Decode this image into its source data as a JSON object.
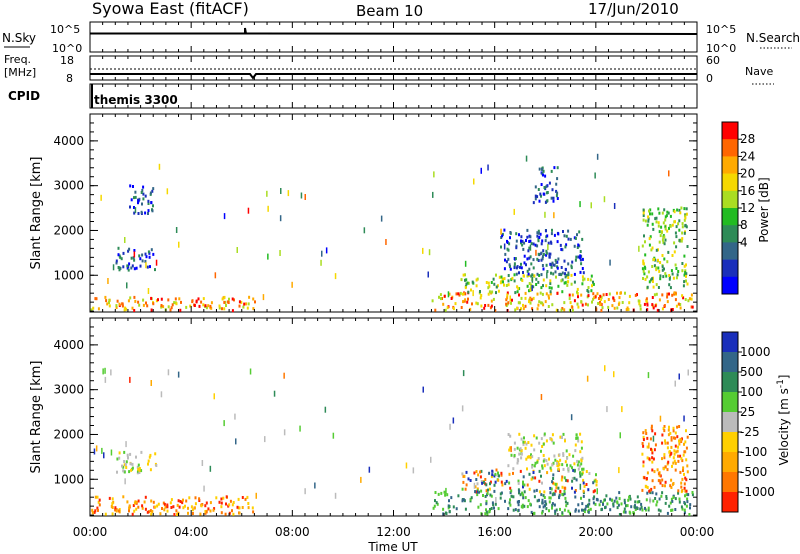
{
  "header": {
    "title_left": "Syowa East (fitACF)",
    "title_center": "Beam 10",
    "title_right": "17/Jun/2010"
  },
  "strip_nsky": {
    "left_label": "N.Sky",
    "left_ticks": [
      "10^5",
      "10^0"
    ],
    "right_ticks": [
      "10^5",
      "10^0"
    ],
    "right_label": "N.Search"
  },
  "strip_freq": {
    "left_label_line1": "Freq.",
    "left_label_line2": "[MHz]",
    "left_ticks": [
      "18",
      "8"
    ],
    "right_ticks": [
      "60",
      "0"
    ],
    "right_label": "Nave"
  },
  "strip_cpid": {
    "left_label": "CPID",
    "program": "themis 3300"
  },
  "colorbar_power": {
    "label": "Power [dB]",
    "ticks": [
      "28",
      "24",
      "20",
      "16",
      "12",
      "8",
      "4"
    ],
    "colors": [
      "#ff0000",
      "#ff6600",
      "#ffaa00",
      "#f5d800",
      "#aadd22",
      "#22bb22",
      "#2e8b57",
      "#336688",
      "#1a2fbb",
      "#0000ff"
    ]
  },
  "colorbar_velocity": {
    "label": "Velocity [m s^-1]",
    "ticks": [
      "1000",
      "500",
      "100",
      "25",
      "-25",
      "-100",
      "-500",
      "-1000"
    ],
    "colors": [
      "#1a2fbb",
      "#336688",
      "#2e8b57",
      "#55cc33",
      "#bbbbbb",
      "#ffd000",
      "#ffaa00",
      "#ff7700",
      "#ff2200"
    ]
  },
  "chart_data": [
    {
      "type": "heatmap",
      "title": "Power",
      "ylabel": "Slant Range [km]",
      "y_ticks": [
        "1000",
        "2000",
        "3000",
        "4000"
      ],
      "ylim": [
        180,
        4600
      ],
      "xlim": [
        0,
        24
      ],
      "x_ticks": [
        "00:00",
        "04:00",
        "08:00",
        "12:00",
        "16:00",
        "20:00",
        "00:00"
      ],
      "clusters": [
        {
          "t0": 0.0,
          "t1": 6.5,
          "r0": 200,
          "r1": 500,
          "level": "high"
        },
        {
          "t0": 1.0,
          "t1": 2.6,
          "r0": 1100,
          "r1": 1600,
          "level": "low"
        },
        {
          "t0": 1.5,
          "t1": 2.5,
          "r0": 2300,
          "r1": 3000,
          "level": "low"
        },
        {
          "t0": 13.5,
          "t1": 23.8,
          "r0": 200,
          "r1": 600,
          "level": "high"
        },
        {
          "t0": 14.6,
          "t1": 20.0,
          "r0": 600,
          "r1": 1000,
          "level": "mid"
        },
        {
          "t0": 16.2,
          "t1": 19.5,
          "r0": 1000,
          "r1": 2000,
          "level": "low"
        },
        {
          "t0": 21.8,
          "t1": 23.6,
          "r0": 700,
          "r1": 2500,
          "level": "mid"
        },
        {
          "t0": 17.5,
          "t1": 18.5,
          "r0": 2600,
          "r1": 3400,
          "level": "low"
        }
      ]
    },
    {
      "type": "heatmap",
      "title": "Velocity",
      "ylabel": "Slant Range [km]",
      "y_ticks": [
        "1000",
        "2000",
        "3000",
        "4000"
      ],
      "ylim": [
        180,
        4600
      ],
      "xlim": [
        0,
        24
      ],
      "x_ticks": [
        "00:00",
        "04:00",
        "08:00",
        "12:00",
        "16:00",
        "20:00",
        "00:00"
      ],
      "xlabel": "Time UT",
      "clusters": [
        {
          "t0": 0.0,
          "t1": 6.5,
          "r0": 200,
          "r1": 600,
          "level": "negative"
        },
        {
          "t0": 1.0,
          "t1": 2.6,
          "r0": 1100,
          "r1": 1600,
          "level": "near-zero"
        },
        {
          "t0": 13.5,
          "t1": 23.8,
          "r0": 200,
          "r1": 700,
          "level": "positive"
        },
        {
          "t0": 14.6,
          "t1": 20.0,
          "r0": 700,
          "r1": 1200,
          "level": "mixed"
        },
        {
          "t0": 16.5,
          "t1": 19.5,
          "r0": 1200,
          "r1": 2000,
          "level": "near-zero"
        },
        {
          "t0": 21.8,
          "t1": 23.6,
          "r0": 700,
          "r1": 2200,
          "level": "negative"
        }
      ]
    }
  ]
}
